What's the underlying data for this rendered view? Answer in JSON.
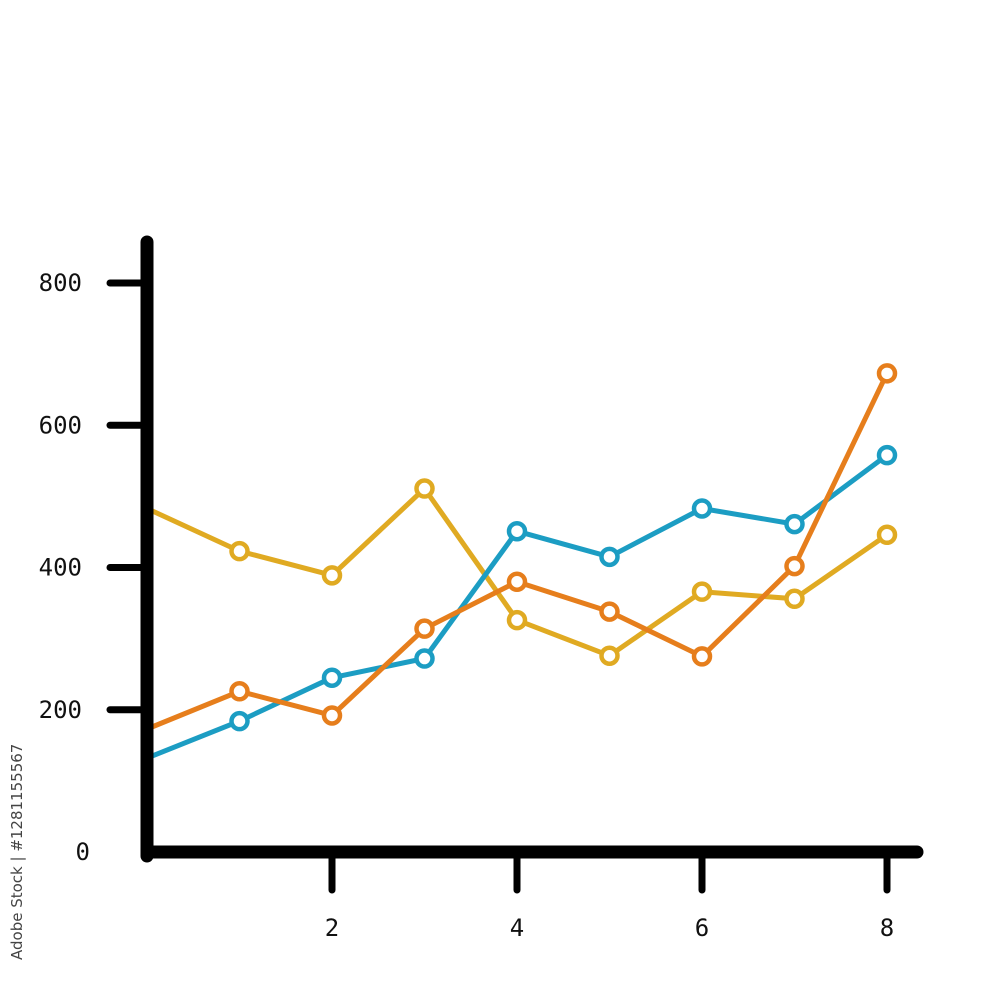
{
  "chart_data": {
    "type": "line",
    "title": "",
    "xlabel": "",
    "ylabel": "",
    "xlim": [
      0,
      8.3
    ],
    "ylim": [
      0,
      800
    ],
    "x_ticks": [
      2,
      4,
      6,
      8
    ],
    "y_ticks": [
      0,
      200,
      400,
      600,
      800
    ],
    "x_tick_labels": [
      "2",
      "4",
      "6",
      "8"
    ],
    "y_tick_labels": [
      "0",
      "200",
      "400",
      "600",
      "800"
    ],
    "grid": false,
    "legend": "none",
    "x": [
      0,
      1,
      2,
      3,
      4,
      5,
      6,
      7,
      8
    ],
    "series": [
      {
        "color": "#e0aa22",
        "values": [
          483,
          423,
          389,
          511,
          326,
          276,
          366,
          356,
          446
        ],
        "markers": [
          false,
          true,
          true,
          true,
          true,
          true,
          true,
          true,
          true
        ]
      },
      {
        "color": "#1c9dc3",
        "values": [
          132,
          184,
          245,
          272,
          451,
          415,
          483,
          461,
          558
        ],
        "markers": [
          false,
          true,
          true,
          true,
          true,
          true,
          true,
          true,
          true
        ]
      },
      {
        "color": "#e67e1c",
        "values": [
          173,
          226,
          192,
          314,
          380,
          338,
          275,
          402,
          673
        ],
        "markers": [
          false,
          true,
          true,
          true,
          true,
          true,
          true,
          true,
          true
        ]
      }
    ]
  },
  "watermark": {
    "text": "Adobe Stock | #1281155567"
  }
}
